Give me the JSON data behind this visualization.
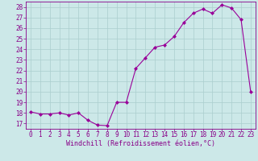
{
  "x": [
    0,
    1,
    2,
    3,
    4,
    5,
    6,
    7,
    8,
    9,
    10,
    11,
    12,
    13,
    14,
    15,
    16,
    17,
    18,
    19,
    20,
    21,
    22,
    23
  ],
  "y": [
    18.1,
    17.9,
    17.9,
    18.0,
    17.8,
    18.0,
    17.3,
    16.85,
    16.8,
    19.0,
    19.0,
    22.2,
    23.2,
    24.2,
    24.4,
    25.2,
    26.5,
    27.4,
    27.8,
    27.4,
    28.2,
    27.9,
    26.8,
    20.0
  ],
  "line_color": "#990099",
  "marker": "D",
  "marker_size": 2,
  "bg_color": "#cce8e8",
  "grid_color": "#aacece",
  "xlabel": "Windchill (Refroidissement éolien,°C)",
  "xlim": [
    -0.5,
    23.5
  ],
  "ylim": [
    16.5,
    28.5
  ],
  "yticks": [
    17,
    18,
    19,
    20,
    21,
    22,
    23,
    24,
    25,
    26,
    27,
    28
  ],
  "xticks": [
    0,
    1,
    2,
    3,
    4,
    5,
    6,
    7,
    8,
    9,
    10,
    11,
    12,
    13,
    14,
    15,
    16,
    17,
    18,
    19,
    20,
    21,
    22,
    23
  ],
  "label_color": "#880088",
  "tick_color": "#880088",
  "spine_color": "#880088",
  "tick_fontsize": 5.5,
  "xlabel_fontsize": 6.0
}
